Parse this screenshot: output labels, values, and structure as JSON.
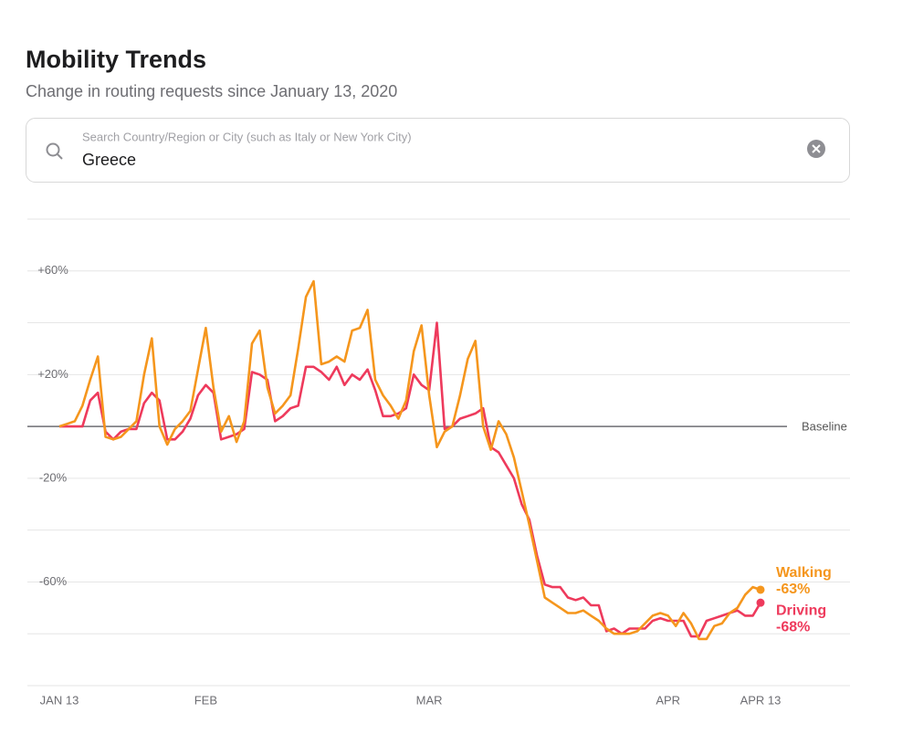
{
  "header": {
    "title": "Mobility Trends",
    "subtitle": "Change in routing requests since January 13, 2020"
  },
  "search": {
    "placeholder": "Search Country/Region or City (such as Italy or New York City)",
    "value": "Greece"
  },
  "chart_data": {
    "type": "line",
    "x": [
      "Jan 13",
      "Jan 14",
      "Jan 15",
      "Jan 16",
      "Jan 17",
      "Jan 18",
      "Jan 19",
      "Jan 20",
      "Jan 21",
      "Jan 22",
      "Jan 23",
      "Jan 24",
      "Jan 25",
      "Jan 26",
      "Jan 27",
      "Jan 28",
      "Jan 29",
      "Jan 30",
      "Jan 31",
      "Feb 1",
      "Feb 2",
      "Feb 3",
      "Feb 4",
      "Feb 5",
      "Feb 6",
      "Feb 7",
      "Feb 8",
      "Feb 9",
      "Feb 10",
      "Feb 11",
      "Feb 12",
      "Feb 13",
      "Feb 14",
      "Feb 15",
      "Feb 16",
      "Feb 17",
      "Feb 18",
      "Feb 19",
      "Feb 20",
      "Feb 21",
      "Feb 22",
      "Feb 23",
      "Feb 24",
      "Feb 25",
      "Feb 26",
      "Feb 27",
      "Feb 28",
      "Feb 29",
      "Mar 1",
      "Mar 2",
      "Mar 3",
      "Mar 4",
      "Mar 5",
      "Mar 6",
      "Mar 7",
      "Mar 8",
      "Mar 9",
      "Mar 10",
      "Mar 11",
      "Mar 12",
      "Mar 13",
      "Mar 14",
      "Mar 15",
      "Mar 16",
      "Mar 17",
      "Mar 18",
      "Mar 19",
      "Mar 20",
      "Mar 21",
      "Mar 22",
      "Mar 23",
      "Mar 24",
      "Mar 25",
      "Mar 26",
      "Mar 27",
      "Mar 28",
      "Mar 29",
      "Mar 30",
      "Mar 31",
      "Apr 1",
      "Apr 2",
      "Apr 3",
      "Apr 4",
      "Apr 5",
      "Apr 6",
      "Apr 7",
      "Apr 8",
      "Apr 9",
      "Apr 10",
      "Apr 11",
      "Apr 12",
      "Apr 13"
    ],
    "series": [
      {
        "name": "Walking",
        "color": "#f5961d",
        "values": [
          0,
          1,
          2,
          8,
          18,
          27,
          -4,
          -5,
          -4,
          -1,
          2,
          20,
          34,
          0,
          -7,
          -1,
          2,
          6,
          22,
          38,
          15,
          -2,
          4,
          -6,
          2,
          32,
          37,
          15,
          5,
          8,
          12,
          30,
          50,
          56,
          24,
          25,
          27,
          25,
          37,
          38,
          45,
          18,
          12,
          8,
          3,
          10,
          29,
          39,
          12,
          -8,
          -2,
          0,
          12,
          26,
          33,
          0,
          -9,
          2,
          -3,
          -12,
          -25,
          -38,
          -52,
          -66,
          -68,
          -70,
          -72,
          -72,
          -71,
          -73,
          -75,
          -78,
          -80,
          -80,
          -80,
          -79,
          -76,
          -73,
          -72,
          -73,
          -77,
          -72,
          -76,
          -82,
          -82,
          -77,
          -76,
          -72,
          -70,
          -65,
          -62,
          -63
        ],
        "value_labels": [
          null,
          null,
          null,
          null,
          null,
          null,
          null,
          null,
          null,
          null,
          null,
          null,
          null,
          null,
          null,
          null,
          null,
          null,
          null,
          null,
          null,
          null,
          null,
          null,
          null,
          null,
          null,
          null,
          null,
          null,
          null,
          null,
          null,
          null,
          null,
          null,
          null,
          null,
          null,
          null,
          null,
          null,
          null,
          null,
          null,
          null,
          null,
          null,
          null,
          null,
          null,
          null,
          null,
          null,
          null,
          null,
          null,
          null,
          null,
          null,
          null,
          null,
          null,
          null,
          null,
          null,
          null,
          null,
          null,
          null,
          null,
          null,
          null,
          null,
          null,
          null,
          null,
          null,
          null,
          null,
          null,
          null,
          null,
          null,
          null,
          null,
          null,
          null,
          null,
          null,
          null,
          "-63%"
        ]
      },
      {
        "name": "Driving",
        "color": "#ee3a5c",
        "values": [
          0,
          0,
          0,
          0,
          10,
          13,
          -2,
          -5,
          -2,
          -1,
          -1,
          9,
          13,
          10,
          -5,
          -5,
          -2,
          3,
          12,
          16,
          13,
          -5,
          -4,
          -3,
          -1,
          21,
          20,
          18,
          2,
          4,
          7,
          8,
          23,
          23,
          21,
          18,
          23,
          16,
          20,
          18,
          22,
          14,
          4,
          4,
          5,
          7,
          20,
          16,
          14,
          40,
          -1,
          0,
          3,
          4,
          5,
          7,
          -8,
          -10,
          -15,
          -20,
          -30,
          -36,
          -50,
          -61,
          -62,
          -62,
          -66,
          -67,
          -66,
          -69,
          -69,
          -79,
          -78,
          -80,
          -78,
          -78,
          -78,
          -75,
          -74,
          -75,
          -75,
          -75,
          -81,
          -81,
          -75,
          -74,
          -73,
          -72,
          -71,
          -73,
          -73,
          -68
        ],
        "value_labels": [
          null,
          null,
          null,
          null,
          null,
          null,
          null,
          null,
          null,
          null,
          null,
          null,
          null,
          null,
          null,
          null,
          null,
          null,
          null,
          null,
          null,
          null,
          null,
          null,
          null,
          null,
          null,
          null,
          null,
          null,
          null,
          null,
          null,
          null,
          null,
          null,
          null,
          null,
          null,
          null,
          null,
          null,
          null,
          null,
          null,
          null,
          null,
          null,
          null,
          null,
          null,
          null,
          null,
          null,
          null,
          null,
          null,
          null,
          null,
          null,
          null,
          null,
          null,
          null,
          null,
          null,
          null,
          null,
          null,
          null,
          null,
          null,
          null,
          null,
          null,
          null,
          null,
          null,
          null,
          null,
          null,
          null,
          null,
          null,
          null,
          null,
          null,
          null,
          null,
          null,
          null,
          "-68%"
        ]
      }
    ],
    "xticks": [
      {
        "value": "Jan 13",
        "label": "JAN 13"
      },
      {
        "value": "Feb 1",
        "label": "FEB"
      },
      {
        "value": "Mar 1",
        "label": "MAR"
      },
      {
        "value": "Apr 1",
        "label": "APR"
      },
      {
        "value": "Apr 13",
        "label": "APR 13"
      }
    ],
    "ylim": [
      -100,
      80
    ],
    "yticks": [
      {
        "value": 60,
        "label": "+60%"
      },
      {
        "value": 20,
        "label": "+20%"
      },
      {
        "value": -20,
        "label": "-20%"
      },
      {
        "value": -60,
        "label": "-60%"
      }
    ],
    "ygrid": [
      -100,
      -80,
      -60,
      -40,
      -20,
      20,
      40,
      60,
      80
    ],
    "baseline": {
      "value": 0,
      "label": "Baseline"
    }
  }
}
